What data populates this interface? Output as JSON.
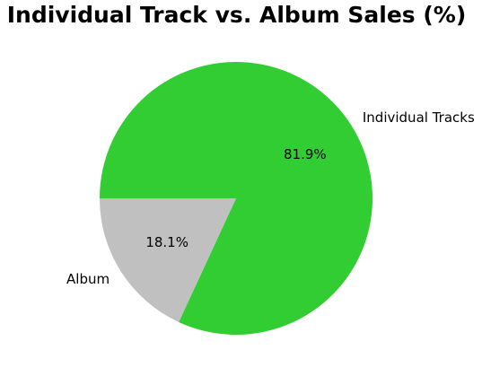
{
  "chart_data": {
    "type": "pie",
    "title": "Individual Track vs. Album Sales (%)",
    "categories": [
      "Individual Tracks",
      "Album"
    ],
    "values": [
      81.9,
      18.1
    ],
    "value_labels": [
      "81.9%",
      "18.1%"
    ],
    "colors": [
      "#32cd32",
      "#c0c0c0"
    ],
    "start_angle_deg": 180,
    "direction": "clockwise",
    "legend": "none"
  }
}
